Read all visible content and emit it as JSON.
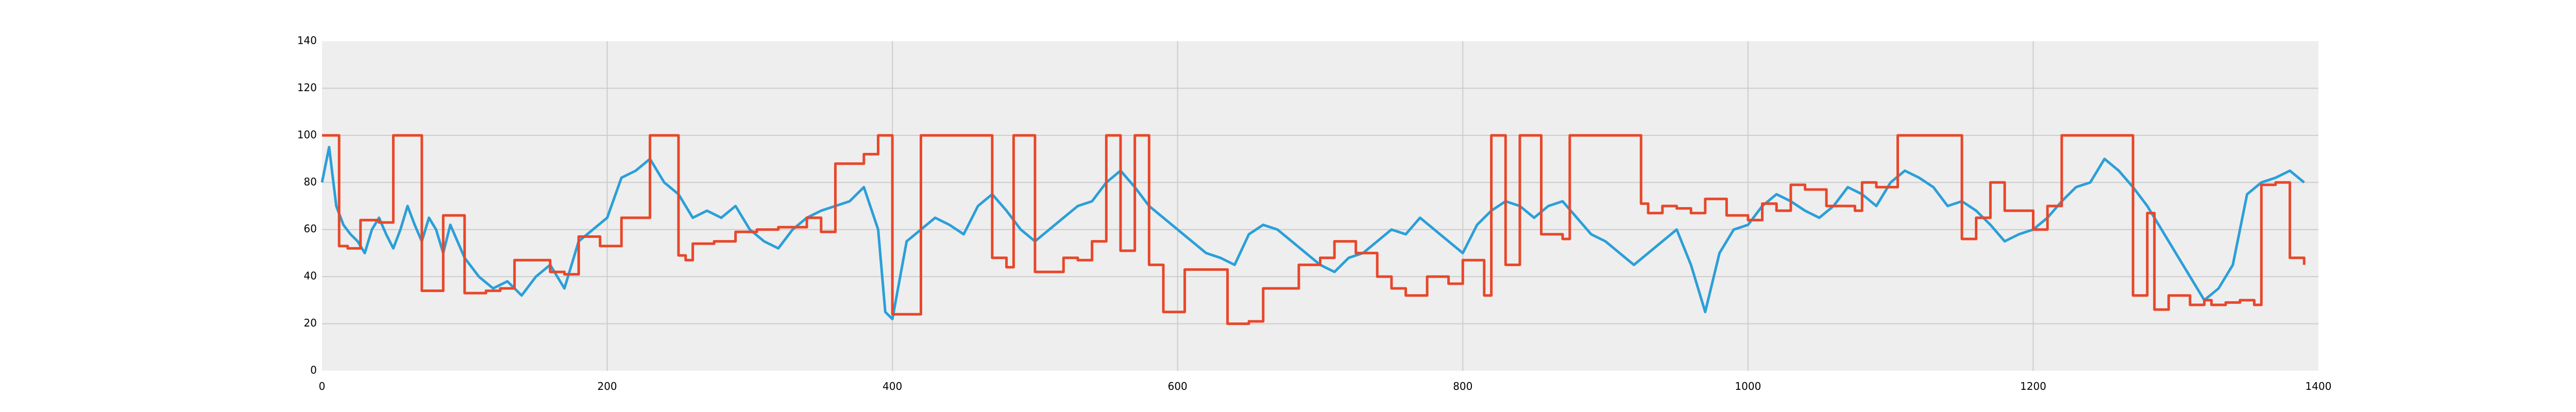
{
  "chart_data": {
    "type": "line",
    "title": "",
    "xlabel": "",
    "ylabel": "",
    "xlim": [
      0,
      1400
    ],
    "ylim": [
      0,
      140
    ],
    "grid": true,
    "x_ticks": [
      0,
      200,
      400,
      600,
      800,
      1000,
      1200,
      1400
    ],
    "y_ticks": [
      0,
      20,
      40,
      60,
      80,
      100,
      120,
      140
    ],
    "x_tick_labels": [
      "0",
      "200",
      "400",
      "600",
      "800",
      "1000",
      "1200",
      "1400"
    ],
    "y_tick_labels": [
      "0",
      "20",
      "40",
      "60",
      "80",
      "100",
      "120",
      "140"
    ],
    "series": [
      {
        "color": "#2b9fd8",
        "style": "noisy",
        "x": [
          0,
          5,
          10,
          15,
          20,
          25,
          30,
          35,
          40,
          45,
          50,
          55,
          60,
          65,
          70,
          75,
          80,
          85,
          90,
          95,
          100,
          110,
          120,
          130,
          140,
          150,
          160,
          170,
          180,
          190,
          200,
          210,
          220,
          230,
          240,
          250,
          260,
          270,
          280,
          290,
          300,
          310,
          320,
          330,
          340,
          350,
          360,
          370,
          380,
          390,
          395,
          400,
          410,
          420,
          430,
          440,
          450,
          460,
          470,
          480,
          490,
          500,
          510,
          520,
          530,
          540,
          550,
          560,
          570,
          580,
          590,
          600,
          610,
          620,
          630,
          640,
          650,
          660,
          670,
          680,
          690,
          700,
          710,
          720,
          730,
          740,
          750,
          760,
          770,
          780,
          790,
          800,
          810,
          820,
          830,
          840,
          850,
          860,
          870,
          880,
          890,
          900,
          910,
          920,
          930,
          940,
          950,
          960,
          970,
          980,
          990,
          1000,
          1010,
          1020,
          1030,
          1040,
          1050,
          1060,
          1070,
          1080,
          1090,
          1100,
          1110,
          1120,
          1130,
          1140,
          1150,
          1160,
          1170,
          1180,
          1190,
          1200,
          1210,
          1220,
          1230,
          1240,
          1250,
          1260,
          1270,
          1280,
          1290,
          1300,
          1310,
          1320,
          1330,
          1340,
          1350,
          1360,
          1370,
          1380,
          1390
        ],
        "values": [
          80,
          95,
          70,
          62,
          58,
          55,
          50,
          60,
          65,
          58,
          52,
          60,
          70,
          62,
          55,
          65,
          60,
          50,
          62,
          55,
          48,
          40,
          35,
          38,
          32,
          40,
          45,
          35,
          55,
          60,
          65,
          82,
          85,
          90,
          80,
          75,
          65,
          68,
          65,
          70,
          60,
          55,
          52,
          60,
          65,
          68,
          70,
          72,
          78,
          60,
          25,
          22,
          55,
          60,
          65,
          62,
          58,
          70,
          75,
          68,
          60,
          55,
          60,
          65,
          70,
          72,
          80,
          85,
          78,
          70,
          65,
          60,
          55,
          50,
          48,
          45,
          58,
          62,
          60,
          55,
          50,
          45,
          42,
          48,
          50,
          55,
          60,
          58,
          65,
          60,
          55,
          50,
          62,
          68,
          72,
          70,
          65,
          70,
          72,
          65,
          58,
          55,
          50,
          45,
          50,
          55,
          60,
          45,
          25,
          50,
          60,
          62,
          70,
          75,
          72,
          68,
          65,
          70,
          78,
          75,
          70,
          80,
          85,
          82,
          78,
          70,
          72,
          68,
          62,
          55,
          58,
          60,
          65,
          72,
          78,
          80,
          90,
          85,
          78,
          70,
          60,
          50,
          40,
          30,
          35,
          45,
          75,
          80,
          82,
          85,
          80
        ]
      },
      {
        "color": "#e8472a",
        "style": "step",
        "x": [
          0,
          12,
          18,
          27,
          40,
          50,
          60,
          70,
          80,
          85,
          95,
          100,
          110,
          115,
          125,
          135,
          140,
          160,
          170,
          180,
          190,
          195,
          210,
          230,
          235,
          250,
          255,
          260,
          275,
          290,
          305,
          320,
          340,
          350,
          360,
          360,
          380,
          390,
          395,
          400,
          405,
          420,
          440,
          455,
          470,
          480,
          485,
          500,
          520,
          530,
          540,
          550,
          555,
          560,
          570,
          580,
          590,
          600,
          605,
          620,
          635,
          650,
          660,
          685,
          700,
          710,
          725,
          740,
          750,
          760,
          775,
          790,
          800,
          815,
          820,
          830,
          840,
          855,
          870,
          875,
          890,
          925,
          930,
          940,
          950,
          960,
          970,
          985,
          1000,
          1010,
          1020,
          1030,
          1040,
          1055,
          1075,
          1080,
          1090,
          1105,
          1115,
          1150,
          1160,
          1170,
          1180,
          1200,
          1210,
          1220,
          1240,
          1260,
          1270,
          1280,
          1285,
          1295,
          1310,
          1320,
          1325,
          1335,
          1345,
          1355,
          1360,
          1370,
          1380,
          1390
        ],
        "values": [
          100,
          53,
          52,
          64,
          63,
          100,
          100,
          34,
          34,
          66,
          66,
          33,
          33,
          34,
          35,
          47,
          47,
          42,
          41,
          57,
          57,
          53,
          65,
          100,
          100,
          49,
          47,
          54,
          55,
          59,
          60,
          61,
          65,
          59,
          77,
          88,
          92,
          100,
          100,
          24,
          24,
          100,
          100,
          100,
          48,
          44,
          100,
          42,
          48,
          47,
          55,
          100,
          100,
          51,
          100,
          45,
          25,
          25,
          43,
          43,
          20,
          21,
          35,
          45,
          48,
          55,
          50,
          40,
          35,
          32,
          40,
          37,
          47,
          32,
          100,
          45,
          100,
          58,
          56,
          100,
          100,
          71,
          67,
          70,
          69,
          67,
          73,
          66,
          64,
          71,
          68,
          79,
          77,
          70,
          68,
          80,
          78,
          100,
          100,
          56,
          65,
          80,
          68,
          60,
          70,
          100,
          100,
          100,
          32,
          67,
          26,
          32,
          28,
          30,
          28,
          29,
          30,
          28,
          79,
          80,
          48,
          45
        ]
      }
    ]
  }
}
